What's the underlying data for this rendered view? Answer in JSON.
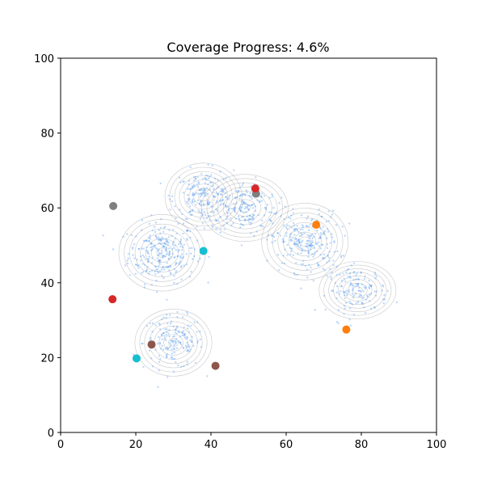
{
  "chart_data": {
    "type": "scatter",
    "title": "Coverage Progress: 4.6%",
    "coverage_percent": 4.6,
    "xlabel": "",
    "ylabel": "",
    "xlim": [
      0,
      100
    ],
    "ylim": [
      0,
      100
    ],
    "x_ticks": [
      0,
      20,
      40,
      60,
      80,
      100
    ],
    "y_ticks": [
      0,
      20,
      40,
      60,
      80,
      100
    ],
    "grid": false,
    "density_clusters": [
      {
        "center": [
          27,
          48
        ],
        "spread": [
          4.5,
          4.0
        ],
        "count": 260
      },
      {
        "center": [
          30,
          24
        ],
        "spread": [
          4.0,
          3.5
        ],
        "count": 160
      },
      {
        "center": [
          38,
          63
        ],
        "spread": [
          4.0,
          3.5
        ],
        "count": 180
      },
      {
        "center": [
          49,
          60
        ],
        "spread": [
          4.5,
          3.5
        ],
        "count": 160
      },
      {
        "center": [
          65,
          51
        ],
        "spread": [
          4.5,
          4.0
        ],
        "count": 240
      },
      {
        "center": [
          79,
          38
        ],
        "spread": [
          4.0,
          3.0
        ],
        "count": 140
      }
    ],
    "agents": [
      {
        "x": 14,
        "y": 60.5,
        "color": "#7f7f7f"
      },
      {
        "x": 52,
        "y": 63.8,
        "color": "#7f7f7f"
      },
      {
        "x": 51.8,
        "y": 65.2,
        "color": "#d62728"
      },
      {
        "x": 13.8,
        "y": 35.6,
        "color": "#d62728"
      },
      {
        "x": 68,
        "y": 55.5,
        "color": "#ff7f0e"
      },
      {
        "x": 76,
        "y": 27.5,
        "color": "#ff7f0e"
      },
      {
        "x": 38,
        "y": 48.5,
        "color": "#17becf"
      },
      {
        "x": 20.2,
        "y": 19.8,
        "color": "#17becf"
      },
      {
        "x": 24.2,
        "y": 23.5,
        "color": "#8c564b"
      },
      {
        "x": 41.2,
        "y": 17.8,
        "color": "#8c564b"
      }
    ]
  }
}
